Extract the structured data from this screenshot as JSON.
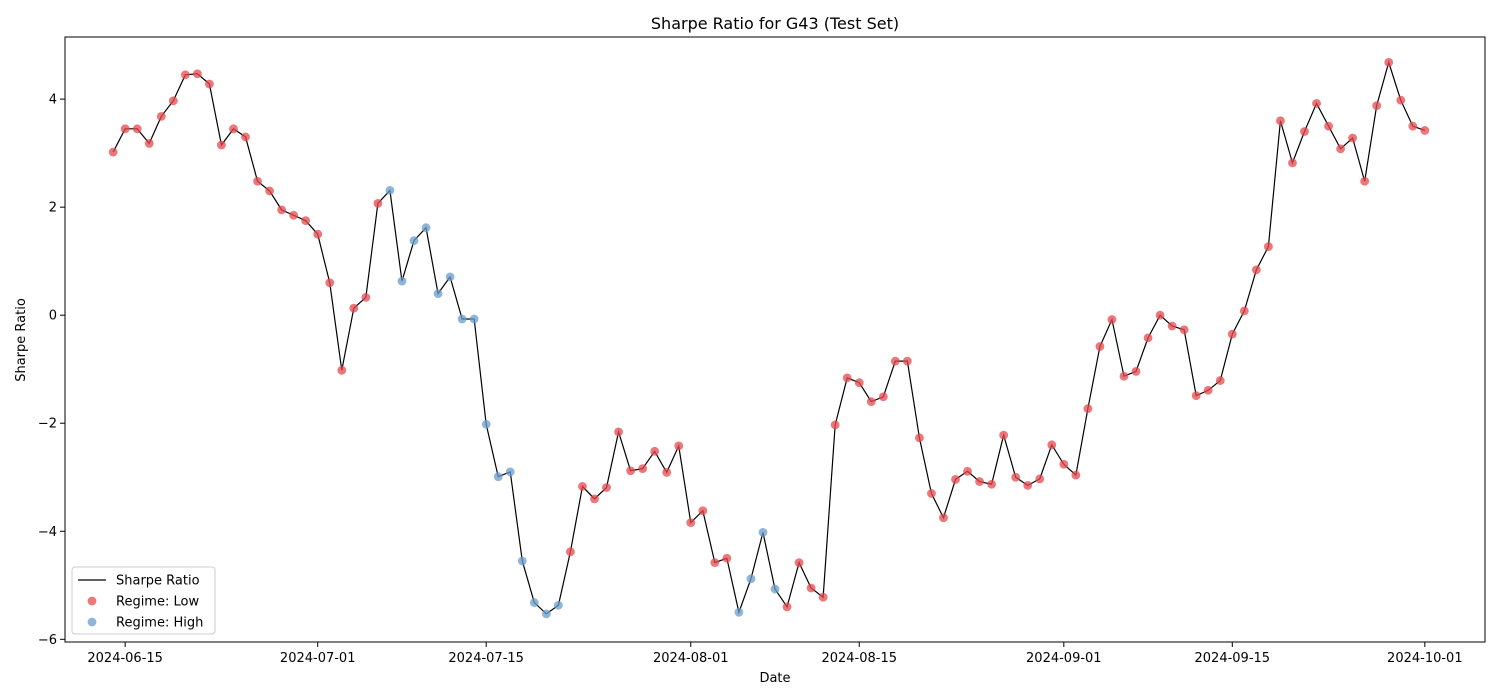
{
  "chart_data": {
    "type": "line",
    "title": "Sharpe Ratio  for G43 (Test Set)",
    "xlabel": "Date",
    "ylabel": "Sharpe Ratio",
    "x_range": [
      "2024-06-10",
      "2024-10-06"
    ],
    "ylim": [
      -6.05,
      5.15
    ],
    "x_ticks": [
      "2024-06-15",
      "2024-07-01",
      "2024-07-15",
      "2024-08-01",
      "2024-08-15",
      "2024-09-01",
      "2024-09-15",
      "2024-10-01"
    ],
    "y_ticks": [
      -6,
      -4,
      -2,
      0,
      2,
      4
    ],
    "y_tick_labels": [
      "−6",
      "−4",
      "−2",
      "0",
      "2",
      "4"
    ],
    "grid": false,
    "legend_position": "lower-left",
    "colors": {
      "line": "#000000",
      "low": "#e6484d",
      "high": "#6a9ccc"
    },
    "series": [
      {
        "name": "Sharpe Ratio",
        "start_date": "2024-06-14",
        "values": [
          3.02,
          3.45,
          3.45,
          3.18,
          3.68,
          3.97,
          4.45,
          4.47,
          4.28,
          3.15,
          3.45,
          3.3,
          2.48,
          2.3,
          1.95,
          1.85,
          1.75,
          1.5,
          0.6,
          -1.02,
          0.13,
          0.33,
          2.07,
          2.31,
          0.63,
          1.38,
          1.62,
          0.4,
          0.71,
          -0.07,
          -0.07,
          -2.02,
          -2.99,
          -2.9,
          -4.55,
          -5.32,
          -5.53,
          -5.37,
          -4.38,
          -3.17,
          -3.4,
          -3.19,
          -2.16,
          -2.88,
          -2.84,
          -2.52,
          -2.91,
          -2.42,
          -3.84,
          -3.62,
          -4.58,
          -4.5,
          -5.5,
          -4.88,
          -4.02,
          -5.07,
          -5.4,
          -4.58,
          -5.05,
          -5.22,
          -2.03,
          -1.16,
          -1.25,
          -1.6,
          -1.51,
          -0.85,
          -0.85,
          -2.27,
          -3.3,
          -3.75,
          -3.04,
          -2.89,
          -3.08,
          -3.13,
          -2.22,
          -3.0,
          -3.15,
          -3.03,
          -2.4,
          -2.76,
          -2.96,
          -1.73,
          -0.58,
          -0.08,
          -1.13,
          -1.04,
          -0.42,
          0.0,
          -0.2,
          -0.27,
          -1.49,
          -1.39,
          -1.21,
          -0.35,
          0.08,
          0.84,
          1.27,
          3.6,
          2.82,
          3.4,
          3.92,
          3.5,
          3.08,
          3.28,
          2.48,
          3.88,
          4.68,
          3.98,
          3.5,
          3.42
        ],
        "regime": [
          "L",
          "L",
          "L",
          "L",
          "L",
          "L",
          "L",
          "L",
          "L",
          "L",
          "L",
          "L",
          "L",
          "L",
          "L",
          "L",
          "L",
          "L",
          "L",
          "L",
          "L",
          "L",
          "L",
          "H",
          "H",
          "H",
          "H",
          "H",
          "H",
          "H",
          "H",
          "H",
          "H",
          "H",
          "H",
          "H",
          "H",
          "H",
          "L",
          "L",
          "L",
          "L",
          "L",
          "L",
          "L",
          "L",
          "L",
          "L",
          "L",
          "L",
          "L",
          "L",
          "H",
          "H",
          "H",
          "H",
          "L",
          "L",
          "L",
          "L",
          "L",
          "L",
          "L",
          "L",
          "L",
          "L",
          "L",
          "L",
          "L",
          "L",
          "L",
          "L",
          "L",
          "L",
          "L",
          "L",
          "L",
          "L",
          "L",
          "L",
          "L",
          "L",
          "L",
          "L",
          "L",
          "L",
          "L",
          "L",
          "L",
          "L",
          "L",
          "L",
          "L",
          "L",
          "L",
          "L",
          "L",
          "L",
          "L",
          "L",
          "L",
          "L",
          "L",
          "L",
          "L",
          "L",
          "L",
          "L",
          "L",
          "L"
        ]
      }
    ],
    "legend": [
      {
        "kind": "line",
        "label": "Sharpe Ratio"
      },
      {
        "kind": "marker",
        "label": "Regime: Low",
        "regime": "L"
      },
      {
        "kind": "marker",
        "label": "Regime: High",
        "regime": "H"
      }
    ]
  }
}
